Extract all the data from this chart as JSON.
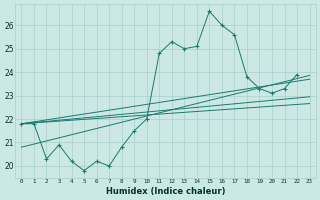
{
  "x": [
    0,
    1,
    2,
    3,
    4,
    5,
    6,
    7,
    8,
    9,
    10,
    11,
    12,
    13,
    14,
    15,
    16,
    17,
    18,
    19,
    20,
    21,
    22,
    23
  ],
  "y_main": [
    21.8,
    21.8,
    20.3,
    20.9,
    20.2,
    19.8,
    20.2,
    20.0,
    20.8,
    21.5,
    22.0,
    24.8,
    25.3,
    25.0,
    25.1,
    26.6,
    26.0,
    25.6,
    23.8,
    23.3,
    23.1,
    23.3,
    23.9,
    null
  ],
  "line_starts": [
    21.8,
    21.8,
    21.8,
    20.8
  ],
  "line_ends": [
    22.95,
    23.7,
    22.66,
    23.86
  ],
  "color": "#1a7a6e",
  "background": "#cce8e4",
  "grid_color": "#aacfcb",
  "ylabel_vals": [
    20,
    21,
    22,
    23,
    24,
    25,
    26
  ],
  "xlabel": "Humidex (Indice chaleur)",
  "xlim": [
    -0.5,
    23.5
  ],
  "ylim": [
    19.5,
    26.9
  ]
}
